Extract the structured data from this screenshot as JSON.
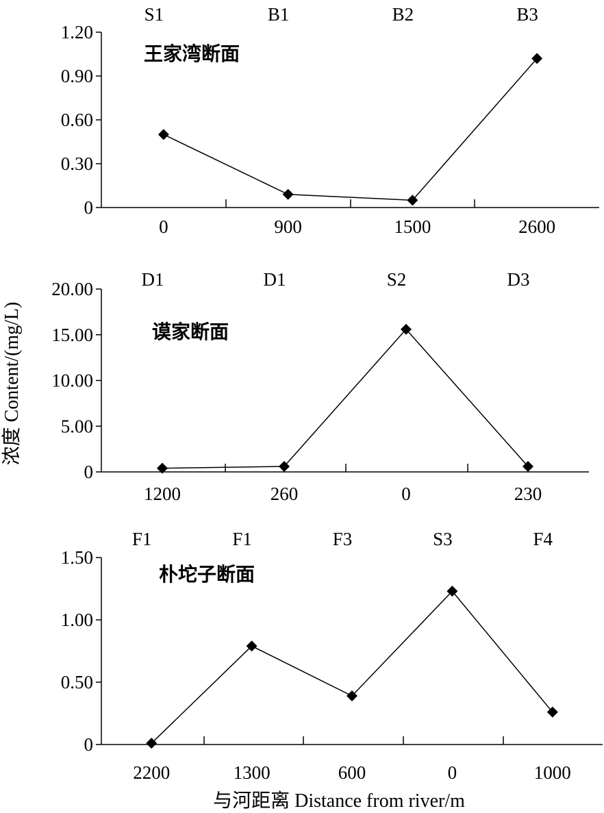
{
  "chart_data": [
    {
      "type": "line",
      "title": "王家湾断面",
      "categories": [
        "0",
        "900",
        "1500",
        "2600"
      ],
      "top_labels": [
        "S1",
        "B1",
        "B2",
        "B3"
      ],
      "values": [
        0.5,
        0.09,
        0.05,
        1.02
      ],
      "ylim": [
        0,
        1.2
      ],
      "yticks": [
        "0",
        "0.30",
        "0.60",
        "0.90",
        "1.20"
      ],
      "ytick_values": [
        0,
        0.3,
        0.6,
        0.9,
        1.2
      ],
      "grid": false,
      "marker": "diamond"
    },
    {
      "type": "line",
      "title": "谟家断面",
      "categories": [
        "1200",
        "260",
        "0",
        "230"
      ],
      "top_labels": [
        "D1",
        "D1",
        "S2",
        "D3"
      ],
      "values": [
        0.4,
        0.6,
        15.6,
        0.6
      ],
      "ylim": [
        0,
        20
      ],
      "yticks": [
        "0",
        "5.00",
        "10.00",
        "15.00",
        "20.00"
      ],
      "ytick_values": [
        0,
        5,
        10,
        15,
        20
      ],
      "grid": false,
      "marker": "diamond"
    },
    {
      "type": "line",
      "title": "朴坨子断面",
      "categories": [
        "2200",
        "1300",
        "600",
        "0",
        "1000"
      ],
      "top_labels": [
        "F1",
        "F1",
        "F3",
        "S3",
        "F4"
      ],
      "values": [
        0.01,
        0.79,
        0.39,
        1.23,
        0.26
      ],
      "ylim": [
        0,
        1.5
      ],
      "yticks": [
        "0",
        "0.50",
        "1.00",
        "1.50"
      ],
      "ytick_values": [
        0,
        0.5,
        1.0,
        1.5
      ],
      "grid": false,
      "marker": "diamond"
    }
  ],
  "ylabel": "浓度 Content/(mg/L)",
  "xlabel": "与河距离 Distance from river/m"
}
